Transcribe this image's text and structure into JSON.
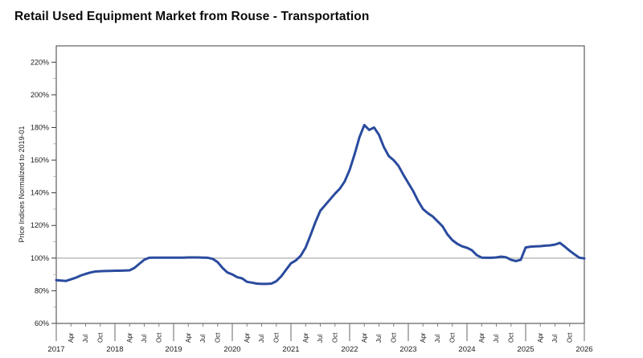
{
  "title": "Retail Used Equipment Market from Rouse - Transportation",
  "colors": {
    "series_line": "#2a4b9e",
    "axis": "#3c3c3c",
    "minor_tick": "#a8a8a8",
    "reference_line": "#9a9a9a",
    "tick_label": "#1a1a1a",
    "background": "#ffffff"
  },
  "chart_data": {
    "type": "line",
    "title": "Retail Used Equipment Market from Rouse - Transportation",
    "xlabel": "",
    "ylabel": "Price Indices Normalized to 2019-01",
    "ylim": [
      60,
      230
    ],
    "yticks_major": [
      60,
      80,
      100,
      120,
      140,
      160,
      180,
      200,
      220
    ],
    "ytick_suffix": "%",
    "yticks_minor_step": 10,
    "grid": false,
    "legend_position": "none",
    "reference_line_y": 100,
    "x_years": [
      "2017",
      "2018",
      "2019",
      "2020",
      "2021",
      "2022",
      "2023",
      "2024",
      "2025",
      "2026"
    ],
    "x_minor_month_labels": [
      "Apr",
      "Jul",
      "Oct"
    ],
    "x_minor_month_indices": [
      3,
      6,
      9
    ],
    "x_start": "2017-01",
    "x_end": "2026-01",
    "x_frequency": "monthly",
    "series": [
      {
        "name": "Transportation",
        "color": "#2a4b9e",
        "values": [
          86.5,
          86.2,
          86.0,
          87.0,
          88.0,
          89.3,
          90.3,
          91.2,
          91.8,
          92.0,
          92.1,
          92.2,
          92.3,
          92.3,
          92.4,
          92.5,
          94.0,
          96.5,
          99.0,
          100.2,
          100.3,
          100.3,
          100.3,
          100.3,
          100.3,
          100.3,
          100.3,
          100.4,
          100.4,
          100.4,
          100.3,
          100.2,
          99.5,
          97.5,
          94.0,
          91.2,
          90.0,
          88.3,
          87.6,
          85.5,
          85.0,
          84.4,
          84.2,
          84.2,
          84.4,
          85.8,
          88.8,
          92.8,
          96.8,
          98.6,
          101.5,
          106.5,
          114.0,
          122.0,
          129.0,
          132.5,
          136.0,
          139.5,
          142.5,
          147.0,
          154.0,
          163.5,
          174.0,
          181.5,
          178.5,
          180.0,
          175.5,
          168.0,
          162.5,
          160.0,
          156.5,
          151.0,
          146.0,
          141.0,
          135.0,
          130.0,
          127.5,
          125.5,
          122.5,
          119.5,
          114.5,
          111.0,
          108.8,
          107.2,
          106.3,
          104.8,
          101.8,
          100.3,
          100.2,
          100.2,
          100.4,
          100.9,
          100.5,
          99.0,
          98.2,
          99.0,
          106.5,
          107.0,
          107.2,
          107.3,
          107.6,
          107.8,
          108.3,
          109.3,
          107.0,
          104.5,
          102.3,
          100.2,
          99.8
        ]
      }
    ]
  }
}
